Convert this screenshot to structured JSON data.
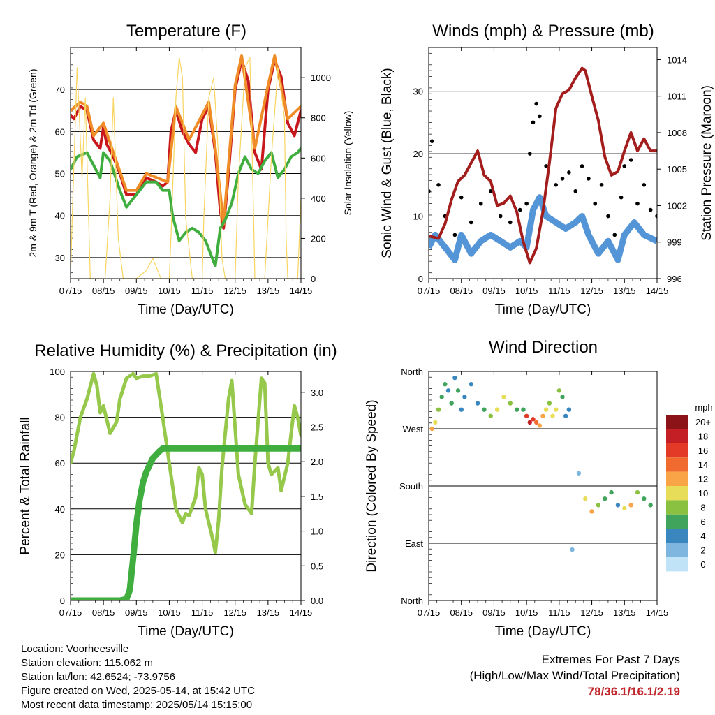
{
  "x_ticks": [
    "07/15",
    "08/15",
    "09/15",
    "10/15",
    "11/15",
    "12/15",
    "13/15",
    "14/15"
  ],
  "chart_data": [
    {
      "type": "line",
      "title": "Temperature (F)",
      "xlabel": "Time (Day/UTC)",
      "ylabel": "2m & 9m T (Red, Orange) & 2m Td (Green)",
      "ylabel_right": "Solar Insolation (Yellow)",
      "x_unit": "days since 07/15 00 UTC",
      "xlim": [
        0,
        7
      ],
      "ylim": [
        25,
        80
      ],
      "ylim_right": [
        0,
        1150
      ],
      "yticks": [
        30,
        40,
        50,
        60,
        70
      ],
      "yticks_right": [
        0,
        200,
        400,
        600,
        800,
        1000
      ],
      "grid": "horizontal",
      "series": [
        {
          "name": "2m T",
          "color": "#c8181e",
          "x": [
            0,
            0.1,
            0.3,
            0.5,
            0.7,
            0.9,
            1.0,
            1.1,
            1.3,
            1.5,
            1.7,
            2.0,
            2.3,
            2.6,
            2.8,
            2.95,
            3.05,
            3.2,
            3.4,
            3.6,
            3.8,
            4.0,
            4.2,
            4.4,
            4.55,
            4.65,
            4.8,
            5.0,
            5.2,
            5.4,
            5.6,
            5.8,
            6.0,
            6.2,
            6.4,
            6.6,
            6.8,
            7.0
          ],
          "values": [
            64,
            63,
            66,
            65,
            58,
            56,
            61,
            57,
            54,
            50,
            45,
            45,
            49,
            48,
            47,
            48,
            60,
            65,
            60,
            57,
            55,
            63,
            66,
            55,
            41,
            37,
            50,
            70,
            77,
            72,
            55,
            51,
            70,
            77,
            73,
            62,
            59,
            65
          ]
        },
        {
          "name": "9m T",
          "color": "#f08c28",
          "x": [
            0,
            0.3,
            0.5,
            0.7,
            1.0,
            1.3,
            1.7,
            2.0,
            2.3,
            2.95,
            3.2,
            3.6,
            4.0,
            4.2,
            4.4,
            4.65,
            5.0,
            5.2,
            5.6,
            6.0,
            6.2,
            6.6,
            7.0
          ],
          "values": [
            65,
            67,
            66,
            59,
            62,
            55,
            46,
            46,
            50,
            48,
            66,
            58,
            64,
            67,
            56,
            38,
            71,
            78,
            56,
            71,
            78,
            63,
            66
          ]
        },
        {
          "name": "2m Td",
          "color": "#3fae3f",
          "x": [
            0,
            0.2,
            0.5,
            0.7,
            0.9,
            1.0,
            1.2,
            1.5,
            1.7,
            2.0,
            2.3,
            2.6,
            2.8,
            3.0,
            3.1,
            3.3,
            3.5,
            3.7,
            3.9,
            4.1,
            4.3,
            4.4,
            4.55,
            4.7,
            4.9,
            5.1,
            5.3,
            5.5,
            5.7,
            5.9,
            6.1,
            6.3,
            6.5,
            6.7,
            6.9,
            7.0
          ],
          "values": [
            51,
            54,
            55,
            52,
            49,
            55,
            53,
            46,
            42,
            45,
            48,
            48,
            46,
            46,
            40,
            34,
            36,
            37,
            36,
            34,
            30,
            28,
            37,
            39,
            43,
            50,
            54,
            51,
            50,
            53,
            55,
            49,
            51,
            54,
            55,
            56
          ]
        },
        {
          "name": "Solar Insolation",
          "color": "#f7d560",
          "axis": "right",
          "x": [
            0,
            0.05,
            0.2,
            0.35,
            0.45,
            0.6,
            1.05,
            1.2,
            1.3,
            1.45,
            1.6,
            2.0,
            2.3,
            2.5,
            2.6,
            2.75,
            3.0,
            3.05,
            3.2,
            3.3,
            3.4,
            3.5,
            3.7,
            4.0,
            4.05,
            4.2,
            4.35,
            4.5,
            4.6,
            4.7,
            5.0,
            5.1,
            5.3,
            5.45,
            5.55,
            5.6,
            5.9,
            6.1,
            6.3,
            6.5,
            6.55,
            6.6,
            6.9,
            7.0
          ],
          "values": [
            0,
            300,
            1050,
            500,
            900,
            0,
            0,
            400,
            900,
            200,
            0,
            0,
            40,
            100,
            60,
            0,
            0,
            200,
            900,
            1100,
            1000,
            300,
            0,
            0,
            300,
            900,
            1000,
            600,
            100,
            0,
            0,
            500,
            1050,
            1100,
            400,
            0,
            0,
            600,
            1050,
            800,
            200,
            0,
            0,
            400
          ]
        }
      ]
    },
    {
      "type": "line",
      "title": "Winds (mph) & Pressure (mb)",
      "xlabel": "Time (Day/UTC)",
      "ylabel": "Sonic Wind & Gust (Blue, Black)",
      "ylabel_right": "Station Pressure (Maroon)",
      "x_unit": "days since 07/15 00 UTC",
      "xlim": [
        0,
        7
      ],
      "ylim": [
        0,
        37
      ],
      "ylim_right": [
        996,
        1015
      ],
      "yticks": [
        0,
        10,
        20,
        30
      ],
      "yticks_right": [
        996,
        999,
        1002,
        1005,
        1008,
        1011,
        1014
      ],
      "grid": "horizontal",
      "series": [
        {
          "name": "Sonic Wind",
          "color": "#4a8fd4",
          "style": "band",
          "x": [
            0,
            0.2,
            0.5,
            0.8,
            1.0,
            1.3,
            1.6,
            1.9,
            2.2,
            2.5,
            2.8,
            3.0,
            3.2,
            3.4,
            3.6,
            3.9,
            4.2,
            4.5,
            4.7,
            4.9,
            5.2,
            5.5,
            5.8,
            6.0,
            6.3,
            6.6,
            7.0
          ],
          "values": [
            5,
            7,
            5,
            3,
            7,
            4,
            6,
            7,
            6,
            5,
            6,
            5,
            11,
            13,
            10,
            9,
            8,
            9,
            10,
            7,
            4,
            6,
            3,
            7,
            9,
            7,
            6
          ]
        },
        {
          "name": "Gust",
          "color": "#000000",
          "style": "points",
          "x": [
            0,
            0.1,
            0.3,
            0.5,
            0.8,
            1.0,
            1.3,
            1.6,
            1.9,
            2.2,
            2.5,
            2.8,
            3.0,
            3.1,
            3.2,
            3.3,
            3.4,
            3.6,
            3.9,
            4.1,
            4.3,
            4.5,
            4.7,
            4.9,
            5.1,
            5.3,
            5.5,
            5.7,
            5.9,
            6.0,
            6.2,
            6.4,
            6.6,
            6.8,
            7.0
          ],
          "values": [
            14,
            22,
            15,
            10,
            7,
            13,
            9,
            12,
            14,
            10,
            9,
            11,
            12,
            20,
            25,
            28,
            26,
            18,
            15,
            16,
            17,
            14,
            18,
            16,
            12,
            15,
            10,
            7,
            13,
            18,
            19,
            12,
            15,
            11,
            10
          ]
        },
        {
          "name": "Station Pressure",
          "color": "#a31d1d",
          "axis": "right",
          "x": [
            0,
            0.3,
            0.5,
            0.7,
            0.9,
            1.1,
            1.3,
            1.5,
            1.7,
            1.9,
            2.1,
            2.3,
            2.5,
            2.7,
            2.9,
            3.1,
            3.3,
            3.5,
            3.7,
            3.9,
            4.1,
            4.3,
            4.5,
            4.7,
            4.8,
            5.0,
            5.2,
            5.4,
            5.6,
            5.8,
            6.0,
            6.2,
            6.4,
            6.6,
            6.8,
            7.0
          ],
          "values": [
            999.5,
            999.3,
            1000.5,
            1002.5,
            1004,
            1004.5,
            1005.5,
            1006.5,
            1004.5,
            1004,
            1002,
            1002.2,
            1002.8,
            1001.5,
            999,
            997.3,
            998.5,
            1001.5,
            1005.5,
            1010,
            1011.2,
            1011.5,
            1012.5,
            1013.3,
            1013.1,
            1011,
            1009,
            1006,
            1004.5,
            1004.8,
            1006.5,
            1008,
            1006.5,
            1007.5,
            1006.5,
            1006.5
          ]
        }
      ]
    },
    {
      "type": "line",
      "title": "Relative Humidity (%) & Precipitation (in)",
      "xlabel": "Time (Day/UTC)",
      "ylabel": "Percent & Total Rainfall",
      "x_unit": "days since 07/15 00 UTC",
      "xlim": [
        0,
        7
      ],
      "ylim": [
        0,
        100
      ],
      "ylim_right": [
        0,
        3.3
      ],
      "yticks": [
        0,
        20,
        40,
        60,
        80,
        100
      ],
      "yticks_right": [
        0.0,
        0.5,
        1.0,
        1.5,
        2.0,
        2.5,
        3.0
      ],
      "grid": "horizontal",
      "series": [
        {
          "name": "Relative Humidity",
          "color": "#96c84b",
          "x": [
            0,
            0.1,
            0.3,
            0.5,
            0.7,
            0.8,
            0.9,
            1.0,
            1.2,
            1.4,
            1.5,
            1.7,
            1.9,
            2.0,
            2.2,
            2.4,
            2.6,
            2.8,
            3.0,
            3.2,
            3.4,
            3.5,
            3.6,
            3.8,
            3.9,
            4.0,
            4.1,
            4.3,
            4.4,
            4.5,
            4.6,
            4.8,
            4.9,
            5.1,
            5.3,
            5.5,
            5.6,
            5.8,
            5.9,
            6.0,
            6.1,
            6.3,
            6.4,
            6.6,
            6.8,
            6.9,
            7.0
          ],
          "values": [
            60,
            65,
            80,
            88,
            99,
            94,
            82,
            85,
            73,
            78,
            88,
            97,
            99,
            97,
            98,
            98,
            99,
            80,
            60,
            40,
            34,
            38,
            37,
            45,
            58,
            55,
            40,
            28,
            21,
            35,
            58,
            88,
            96,
            55,
            42,
            38,
            60,
            97,
            95,
            60,
            55,
            58,
            48,
            60,
            85,
            80,
            72
          ]
        },
        {
          "name": "Total Precipitation",
          "color": "#3fae3f",
          "axis": "right",
          "x": [
            0,
            0.5,
            1.0,
            1.5,
            1.7,
            1.8,
            1.9,
            2.0,
            2.1,
            2.2,
            2.3,
            2.5,
            2.7,
            2.8,
            3.0,
            3.5,
            4.0,
            5.0,
            6.0,
            7.0
          ],
          "values": [
            0,
            0,
            0,
            0,
            0.02,
            0.15,
            0.6,
            1.1,
            1.45,
            1.7,
            1.85,
            2.05,
            2.15,
            2.19,
            2.19,
            2.19,
            2.19,
            2.19,
            2.19,
            2.19
          ]
        }
      ]
    },
    {
      "type": "scatter",
      "title": "Wind Direction",
      "xlabel": "Time (Day/UTC)",
      "ylabel": "Direction (Colored By Speed)",
      "x_unit": "days since 07/15 00 UTC",
      "xlim": [
        0,
        7
      ],
      "ylim": [
        0,
        360
      ],
      "yticks": [
        0,
        90,
        180,
        270,
        360
      ],
      "ytick_labels": [
        "North",
        "East",
        "South",
        "West",
        "North"
      ],
      "grid": "horizontal",
      "legend": {
        "title": "mph",
        "position": "right",
        "levels": [
          "20+",
          "18",
          "16",
          "14",
          "12",
          "10",
          "8",
          "6",
          "4",
          "2",
          "0"
        ],
        "colors": [
          "#8c1418",
          "#c41f25",
          "#e23a26",
          "#f26b2e",
          "#f9a446",
          "#e7dd58",
          "#8bc141",
          "#41a45d",
          "#3a87c0",
          "#7eb6e0",
          "#c1e3f7"
        ]
      },
      "series": [
        {
          "name": "direction",
          "x": [
            0.1,
            0.2,
            0.3,
            0.4,
            0.5,
            0.6,
            0.7,
            0.8,
            0.9,
            1.0,
            1.1,
            1.3,
            1.5,
            1.7,
            1.9,
            2.1,
            2.3,
            2.5,
            2.7,
            2.9,
            3.0,
            3.1,
            3.2,
            3.3,
            3.4,
            3.5,
            3.6,
            3.7,
            3.8,
            3.9,
            4.0,
            4.1,
            4.2,
            4.3,
            4.4,
            4.6,
            4.8,
            5.0,
            5.2,
            5.4,
            5.6,
            5.8,
            6.0,
            6.2,
            6.4,
            6.6,
            6.8
          ],
          "values": [
            270,
            280,
            300,
            320,
            340,
            330,
            310,
            350,
            330,
            300,
            320,
            340,
            310,
            300,
            290,
            300,
            320,
            310,
            300,
            300,
            290,
            280,
            285,
            280,
            275,
            290,
            300,
            310,
            290,
            300,
            330,
            320,
            290,
            300,
            80,
            200,
            160,
            140,
            150,
            160,
            170,
            150,
            145,
            150,
            170,
            160,
            150
          ],
          "speed": [
            12,
            10,
            8,
            6,
            6,
            4,
            6,
            4,
            6,
            4,
            4,
            4,
            4,
            6,
            8,
            10,
            10,
            8,
            6,
            6,
            16,
            18,
            16,
            14,
            12,
            12,
            10,
            8,
            10,
            10,
            8,
            6,
            4,
            4,
            2,
            2,
            10,
            12,
            8,
            6,
            6,
            4,
            10,
            12,
            8,
            6,
            6
          ]
        }
      ]
    }
  ],
  "info": {
    "location": "Location: Voorheesville",
    "elevation": "Station elevation: 115.062 m",
    "latlon": "Station lat/lon: 42.6524; -73.9756",
    "created": "Figure created on Wed, 2025-05-14, at 15:42 UTC",
    "recent": "Most recent data timestamp: 2025/05/14 15:15:00"
  },
  "extremes": {
    "title": "Extremes For Past 7 Days",
    "subtitle": "(High/Low/Max Wind/Total Precipitation)",
    "values": "78/36.1/16.1/2.19"
  }
}
